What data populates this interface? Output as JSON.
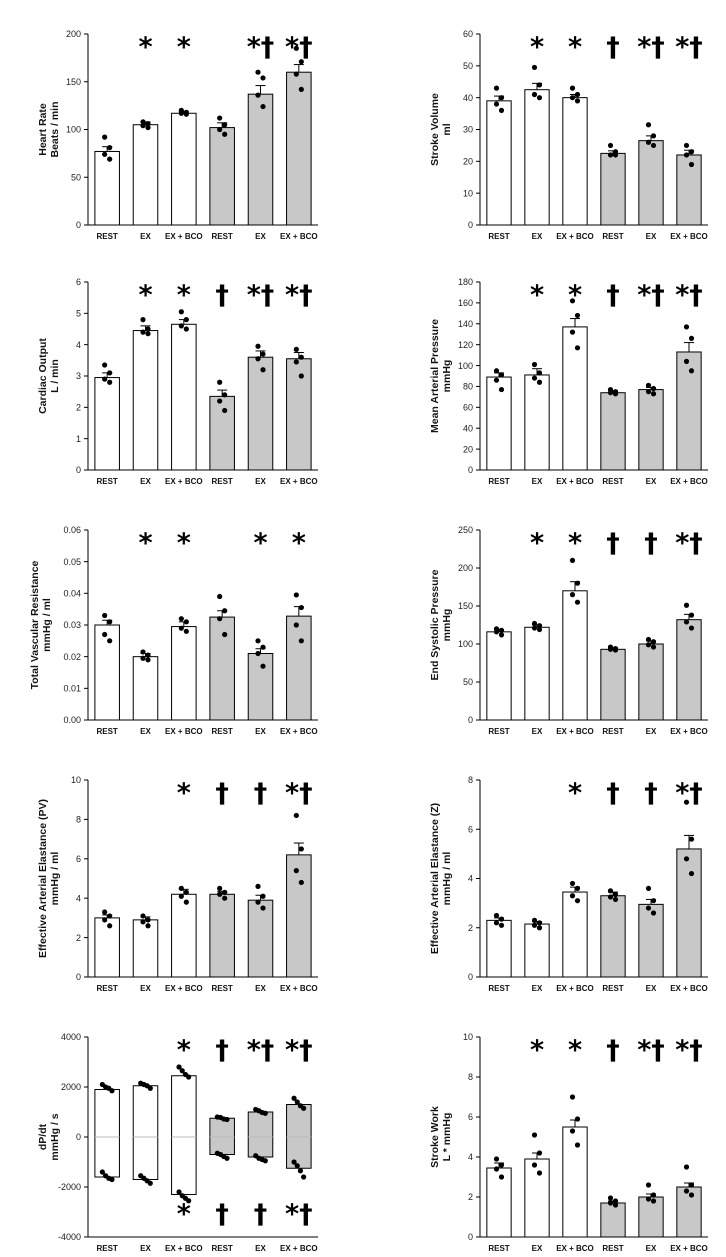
{
  "categories": [
    "REST",
    "EX",
    "EX + BCO",
    "REST",
    "EX",
    "EX + BCO"
  ],
  "colors": {
    "open": "#ffffff",
    "filled": "#c8c8c8",
    "ink": "#000000",
    "median": "#bbbbbb"
  },
  "chart_data": [
    {
      "type": "bar",
      "ylabel": [
        "Heart Rate",
        "Beats / min"
      ],
      "ylim": [
        0,
        200
      ],
      "yticks": [
        0,
        50,
        100,
        150,
        200
      ],
      "decimals": 0,
      "values": [
        77,
        105,
        117,
        102,
        137,
        160
      ],
      "errors": [
        5,
        3,
        2,
        5,
        9,
        8
      ],
      "points": [
        [
          92,
          81,
          74,
          69
        ],
        [
          108,
          106,
          104,
          102
        ],
        [
          120,
          118,
          117,
          116
        ],
        [
          112,
          105,
          100,
          95
        ],
        [
          160,
          154,
          136,
          124
        ],
        [
          185,
          171,
          158,
          142
        ]
      ],
      "markers_top": [
        "",
        "*",
        "*",
        "",
        "*†",
        "*†"
      ],
      "markers_bottom": []
    },
    {
      "type": "bar",
      "ylabel": [
        "Stroke Volume",
        "ml"
      ],
      "ylim": [
        0,
        60
      ],
      "yticks": [
        0,
        10,
        20,
        30,
        40,
        50,
        60
      ],
      "decimals": 0,
      "values": [
        39,
        42.5,
        40,
        22.5,
        26.5,
        22
      ],
      "errors": [
        1.5,
        2,
        1,
        0.8,
        1.5,
        1.5
      ],
      "points": [
        [
          43,
          40,
          38,
          36
        ],
        [
          49.5,
          44,
          41,
          40
        ],
        [
          43,
          41,
          40,
          39
        ],
        [
          25,
          23,
          22,
          22
        ],
        [
          31.5,
          28,
          26,
          25
        ],
        [
          25,
          23,
          22,
          19
        ]
      ],
      "markers_top": [
        "",
        "*",
        "*",
        "†",
        "*†",
        "*†"
      ],
      "markers_bottom": []
    },
    {
      "type": "bar",
      "ylabel": [
        "Cardiac Output",
        "L / min"
      ],
      "ylim": [
        0,
        6
      ],
      "yticks": [
        0,
        1,
        2,
        3,
        4,
        5,
        6
      ],
      "decimals": 0,
      "values": [
        2.95,
        4.45,
        4.65,
        2.35,
        3.6,
        3.55
      ],
      "errors": [
        0.15,
        0.15,
        0.15,
        0.2,
        0.2,
        0.2
      ],
      "points": [
        [
          3.35,
          3.1,
          2.9,
          2.8
        ],
        [
          4.8,
          4.5,
          4.4,
          4.35
        ],
        [
          5.05,
          4.8,
          4.6,
          4.5
        ],
        [
          2.8,
          2.4,
          2.2,
          1.9
        ],
        [
          3.95,
          3.7,
          3.55,
          3.2
        ],
        [
          3.85,
          3.6,
          3.45,
          3.0
        ]
      ],
      "markers_top": [
        "",
        "*",
        "*",
        "†",
        "*†",
        "*†"
      ],
      "markers_bottom": []
    },
    {
      "type": "bar",
      "ylabel": [
        "Mean Arterial Pressure",
        "mmHg"
      ],
      "ylim": [
        0,
        180
      ],
      "yticks": [
        0,
        20,
        40,
        60,
        80,
        100,
        120,
        140,
        160,
        180
      ],
      "decimals": 0,
      "values": [
        89,
        91,
        137,
        74,
        77,
        113
      ],
      "errors": [
        4,
        6,
        8,
        2,
        2,
        9
      ],
      "points": [
        [
          95,
          91,
          86,
          77
        ],
        [
          101,
          93,
          88,
          84
        ],
        [
          162,
          148,
          132,
          117
        ],
        [
          77,
          75,
          74,
          73
        ],
        [
          81,
          78,
          75,
          73
        ],
        [
          137,
          126,
          104,
          95
        ]
      ],
      "markers_top": [
        "",
        "*",
        "*",
        "†",
        "*†",
        "*†"
      ],
      "markers_bottom": []
    },
    {
      "type": "bar",
      "ylabel": [
        "Total Vascular Resistance",
        "mmHg / ml"
      ],
      "ylim": [
        0,
        0.06
      ],
      "yticks": [
        0,
        0.01,
        0.02,
        0.03,
        0.04,
        0.05,
        0.06
      ],
      "decimals": 2,
      "values": [
        0.03,
        0.02,
        0.0295,
        0.0325,
        0.021,
        0.0328
      ],
      "errors": [
        0.0015,
        0.001,
        0.0015,
        0.002,
        0.0015,
        0.003
      ],
      "points": [
        [
          0.033,
          0.031,
          0.027,
          0.025
        ],
        [
          0.0215,
          0.0205,
          0.0195,
          0.019
        ],
        [
          0.032,
          0.031,
          0.029,
          0.028
        ],
        [
          0.039,
          0.0345,
          0.032,
          0.027
        ],
        [
          0.025,
          0.023,
          0.021,
          0.017
        ],
        [
          0.0395,
          0.0355,
          0.03,
          0.025
        ]
      ],
      "markers_top": [
        "",
        "*",
        "*",
        "",
        "*",
        "*"
      ],
      "markers_bottom": []
    },
    {
      "type": "bar",
      "ylabel": [
        "End Systolic Pressure",
        "mmHg"
      ],
      "ylim": [
        0,
        250
      ],
      "yticks": [
        0,
        50,
        100,
        150,
        200,
        250
      ],
      "decimals": 0,
      "values": [
        116,
        122,
        170,
        93,
        100,
        132
      ],
      "errors": [
        3,
        3,
        12,
        2,
        4,
        7
      ],
      "points": [
        [
          120,
          118,
          116,
          112
        ],
        [
          127,
          124,
          121,
          119
        ],
        [
          210,
          180,
          165,
          155
        ],
        [
          96,
          94,
          93,
          92
        ],
        [
          106,
          103,
          99,
          96
        ],
        [
          151,
          138,
          129,
          121
        ]
      ],
      "markers_top": [
        "",
        "*",
        "*",
        "†",
        "†",
        "*†"
      ],
      "markers_bottom": []
    },
    {
      "type": "bar",
      "ylabel": [
        "Effective Arterial Elastance (PV)",
        "mmHg / ml"
      ],
      "ylim": [
        0,
        10
      ],
      "yticks": [
        0,
        2,
        4,
        6,
        8,
        10
      ],
      "decimals": 0,
      "values": [
        3.0,
        2.9,
        4.2,
        4.2,
        3.9,
        6.2
      ],
      "errors": [
        0.15,
        0.15,
        0.25,
        0.15,
        0.25,
        0.6
      ],
      "points": [
        [
          3.3,
          3.1,
          2.9,
          2.6
        ],
        [
          3.1,
          2.9,
          2.8,
          2.6
        ],
        [
          4.5,
          4.3,
          4.1,
          3.8
        ],
        [
          4.5,
          4.3,
          4.2,
          4.0
        ],
        [
          4.6,
          4.1,
          3.8,
          3.5
        ],
        [
          8.2,
          6.5,
          5.4,
          4.8
        ]
      ],
      "markers_top": [
        "",
        "",
        "*",
        "†",
        "†",
        "*†"
      ],
      "markers_bottom": []
    },
    {
      "type": "bar",
      "ylabel": [
        "Effective Arterial Elastance (Z)",
        "mmHg / ml"
      ],
      "ylim": [
        0,
        8
      ],
      "yticks": [
        0,
        2,
        4,
        6,
        8
      ],
      "decimals": 0,
      "values": [
        2.3,
        2.15,
        3.45,
        3.3,
        2.95,
        5.2
      ],
      "errors": [
        0.1,
        0.1,
        0.2,
        0.15,
        0.2,
        0.55
      ],
      "points": [
        [
          2.5,
          2.35,
          2.2,
          2.1
        ],
        [
          2.3,
          2.2,
          2.1,
          2.0
        ],
        [
          3.8,
          3.6,
          3.3,
          3.1
        ],
        [
          3.5,
          3.35,
          3.25,
          3.15
        ],
        [
          3.6,
          3.1,
          2.8,
          2.6
        ],
        [
          7.1,
          5.6,
          4.8,
          4.2
        ]
      ],
      "markers_top": [
        "",
        "",
        "*",
        "†",
        "†",
        "*†"
      ],
      "markers_bottom": []
    },
    {
      "type": "floating-bar",
      "ylabel": [
        "dP/dt",
        "mmHg / s"
      ],
      "ylim": [
        -4000,
        4000
      ],
      "yticks": [
        -4000,
        -2000,
        0,
        2000,
        4000
      ],
      "decimals": 0,
      "highs": [
        1900,
        2050,
        2450,
        750,
        1000,
        1300
      ],
      "lows": [
        -1600,
        -1700,
        -2300,
        -700,
        -800,
        -1250
      ],
      "median": 0,
      "points_high": [
        [
          2100,
          2000,
          1950,
          1850
        ],
        [
          2150,
          2100,
          2050,
          1950
        ],
        [
          2800,
          2650,
          2500,
          2400
        ],
        [
          800,
          780,
          720,
          700
        ],
        [
          1100,
          1050,
          980,
          950
        ],
        [
          1550,
          1400,
          1250,
          1150
        ]
      ],
      "points_low": [
        [
          -1400,
          -1550,
          -1650,
          -1700
        ],
        [
          -1550,
          -1650,
          -1750,
          -1850
        ],
        [
          -2200,
          -2350,
          -2450,
          -2550
        ],
        [
          -650,
          -700,
          -780,
          -850
        ],
        [
          -750,
          -850,
          -900,
          -950
        ],
        [
          -1000,
          -1150,
          -1350,
          -1600
        ]
      ],
      "markers_top": [
        "",
        "",
        "*",
        "†",
        "*†",
        "*†"
      ],
      "markers_bottom": [
        "",
        "",
        "*",
        "†",
        "†",
        "*†"
      ]
    },
    {
      "type": "bar",
      "ylabel": [
        "Stroke Work",
        "L * mmHg"
      ],
      "ylim": [
        0,
        10
      ],
      "yticks": [
        0,
        2,
        4,
        6,
        8,
        10
      ],
      "decimals": 0,
      "values": [
        3.45,
        3.9,
        5.5,
        1.7,
        2.0,
        2.5
      ],
      "errors": [
        0.25,
        0.3,
        0.35,
        0.1,
        0.15,
        0.2
      ],
      "points": [
        [
          3.9,
          3.6,
          3.4,
          3.0
        ],
        [
          5.1,
          4.2,
          3.6,
          3.2
        ],
        [
          7.0,
          5.9,
          5.3,
          4.6
        ],
        [
          1.95,
          1.8,
          1.7,
          1.6
        ],
        [
          2.6,
          2.1,
          1.9,
          1.8
        ],
        [
          3.5,
          2.6,
          2.3,
          2.1
        ]
      ],
      "markers_top": [
        "",
        "*",
        "*",
        "†",
        "*†",
        "*†"
      ],
      "markers_bottom": []
    }
  ]
}
